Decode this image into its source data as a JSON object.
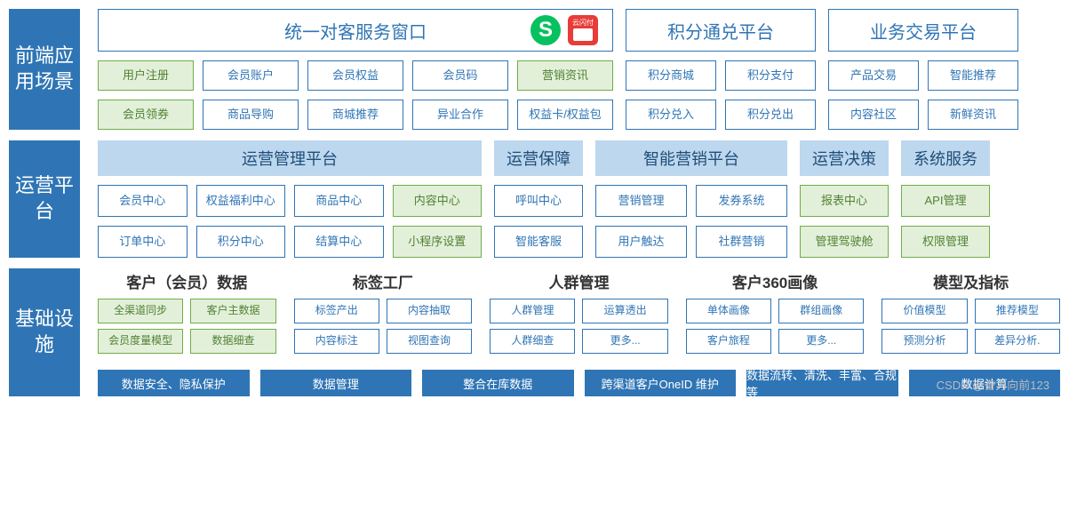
{
  "colors": {
    "primary_blue": "#2f75b5",
    "header_bg": "#bdd7ee",
    "header_fg": "#1f4e79",
    "tile_blue_border": "#2f75b5",
    "tile_blue_fg": "#2f75b5",
    "tile_green_border": "#70ad47",
    "tile_green_bg": "#e2f0d9",
    "tile_green_fg": "#538135",
    "app_green": "#07c160",
    "app_red": "#e83c39"
  },
  "row1": {
    "label": "前端应用场景",
    "headers": {
      "h1": "统一对客服务窗口",
      "h2": "积分通兑平台",
      "h3": "业务交易平台"
    },
    "icons": {
      "wechat_mp": "S",
      "unionpay_top": "云闪付"
    },
    "col1": {
      "r1": [
        "用户注册",
        "会员账户",
        "会员权益",
        "会员码",
        "营销资讯"
      ],
      "r2": [
        "会员领券",
        "商品导购",
        "商城推荐",
        "异业合作",
        "权益卡/权益包"
      ]
    },
    "col2": {
      "r1": [
        "积分商城",
        "积分支付"
      ],
      "r2": [
        "积分兑入",
        "积分兑出"
      ]
    },
    "col3": {
      "r1": [
        "产品交易",
        "智能推荐"
      ],
      "r2": [
        "内容社区",
        "新鲜资讯"
      ]
    }
  },
  "row2": {
    "label": "运营平台",
    "headers": {
      "h1": "运营管理平台",
      "h2": "运营保障",
      "h3": "智能营销平台",
      "h4": "运营决策",
      "h5": "系统服务"
    },
    "col1": {
      "r1": [
        {
          "t": "会员中心",
          "c": "blue"
        },
        {
          "t": "权益福利中心",
          "c": "blue"
        },
        {
          "t": "商品中心",
          "c": "blue"
        },
        {
          "t": "内容中心",
          "c": "green"
        }
      ],
      "r2": [
        {
          "t": "订单中心",
          "c": "blue"
        },
        {
          "t": "积分中心",
          "c": "blue"
        },
        {
          "t": "结算中心",
          "c": "blue"
        },
        {
          "t": "小程序设置",
          "c": "green"
        }
      ]
    },
    "col2": {
      "r1": [
        {
          "t": "呼叫中心",
          "c": "blue"
        }
      ],
      "r2": [
        {
          "t": "智能客服",
          "c": "blue"
        }
      ]
    },
    "col3": {
      "r1": [
        {
          "t": "营销管理",
          "c": "blue"
        },
        {
          "t": "发券系统",
          "c": "blue"
        }
      ],
      "r2": [
        {
          "t": "用户触达",
          "c": "blue"
        },
        {
          "t": "社群营销",
          "c": "blue"
        }
      ]
    },
    "col4": {
      "r1": [
        {
          "t": "报表中心",
          "c": "green"
        }
      ],
      "r2": [
        {
          "t": "管理驾驶舱",
          "c": "green"
        }
      ]
    },
    "col5": {
      "r1": [
        {
          "t": "API管理",
          "c": "green"
        }
      ],
      "r2": [
        {
          "t": "权限管理",
          "c": "green"
        }
      ]
    }
  },
  "row3": {
    "label": "基础设施",
    "groups": [
      {
        "title": "客户（会员）数据",
        "rows": [
          [
            {
              "t": "全渠道同步",
              "c": "green"
            },
            {
              "t": "客户主数据",
              "c": "green"
            }
          ],
          [
            {
              "t": "会员度量模型",
              "c": "green"
            },
            {
              "t": "数据细查",
              "c": "green"
            }
          ]
        ]
      },
      {
        "title": "标签工厂",
        "rows": [
          [
            {
              "t": "标签产出",
              "c": "blue"
            },
            {
              "t": "内容抽取",
              "c": "blue"
            }
          ],
          [
            {
              "t": "内容标注",
              "c": "blue"
            },
            {
              "t": "视图查询",
              "c": "blue"
            }
          ]
        ]
      },
      {
        "title": "人群管理",
        "rows": [
          [
            {
              "t": "人群管理",
              "c": "blue"
            },
            {
              "t": "运算透出",
              "c": "blue"
            }
          ],
          [
            {
              "t": "人群细查",
              "c": "blue"
            },
            {
              "t": "更多...",
              "c": "blue"
            }
          ]
        ]
      },
      {
        "title": "客户360画像",
        "rows": [
          [
            {
              "t": "单体画像",
              "c": "blue"
            },
            {
              "t": "群组画像",
              "c": "blue"
            }
          ],
          [
            {
              "t": "客户旅程",
              "c": "blue"
            },
            {
              "t": "更多...",
              "c": "blue"
            }
          ]
        ]
      },
      {
        "title": "模型及指标",
        "rows": [
          [
            {
              "t": "价值模型",
              "c": "blue"
            },
            {
              "t": "推荐模型",
              "c": "blue"
            }
          ],
          [
            {
              "t": "预测分析",
              "c": "blue"
            },
            {
              "t": "差异分析.",
              "c": "blue"
            }
          ]
        ]
      }
    ],
    "bars": [
      "数据安全、隐私保护",
      "数据管理",
      "整合在库数据",
      "跨渠道客户OneID 维护",
      "数据流转、清洗、丰富、合规等",
      "数据计算"
    ]
  },
  "watermark": "CSDN @奋力向前123"
}
